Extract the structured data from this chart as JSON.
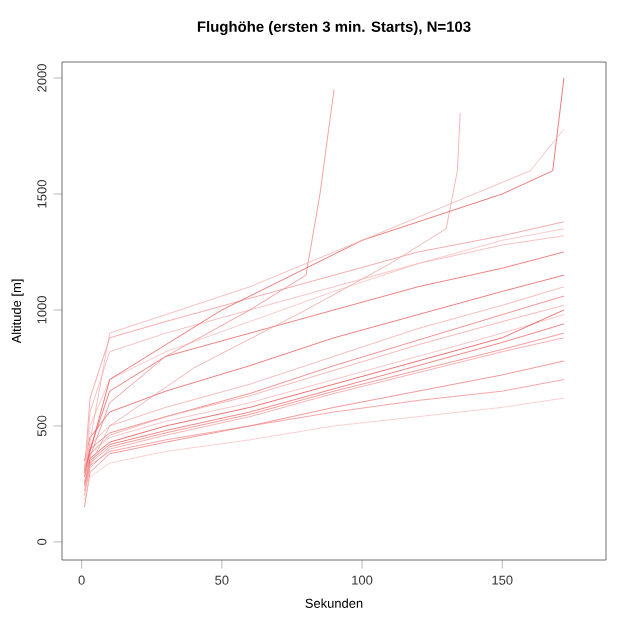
{
  "chart_data": {
    "type": "line",
    "title": "Flughöhe (ersten 3 min. Starts), N=103",
    "xlabel": "Sekunden",
    "ylabel": "Altitude [m]",
    "xlim": [
      -7,
      187
    ],
    "ylim": [
      -78,
      2069
    ],
    "xticks": [
      0,
      50,
      100,
      150
    ],
    "yticks": [
      0,
      500,
      1000,
      1500,
      2000
    ],
    "grid": false,
    "marker": "none",
    "line_style": "solid",
    "x": [
      1,
      3,
      10,
      30,
      60,
      90,
      120,
      150,
      172
    ],
    "series": [
      {
        "color": "#f08080",
        "values": [
          150,
          300,
          380,
          430,
          500,
          580,
          650,
          720,
          780
        ]
      },
      {
        "color": "#f4a0a0",
        "values": [
          200,
          320,
          400,
          460,
          540,
          640,
          730,
          820,
          880
        ]
      },
      {
        "color": "#ec6a6a",
        "values": [
          250,
          350,
          420,
          480,
          560,
          660,
          760,
          860,
          940
        ]
      },
      {
        "color": "#f8b8b8",
        "values": [
          300,
          380,
          450,
          520,
          600,
          700,
          800,
          900,
          980
        ]
      },
      {
        "color": "#e85050",
        "values": [
          280,
          360,
          430,
          500,
          580,
          680,
          780,
          880,
          1000
        ]
      },
      {
        "color": "#f49090",
        "values": [
          220,
          330,
          390,
          440,
          500,
          560,
          610,
          650,
          700
        ]
      },
      {
        "color": "#fac4c4",
        "values": [
          180,
          280,
          340,
          390,
          440,
          500,
          540,
          580,
          620
        ]
      },
      {
        "color": "#ee7878",
        "values": [
          300,
          400,
          470,
          540,
          640,
          760,
          870,
          980,
          1060
        ]
      },
      {
        "color": "#f6acac",
        "values": [
          320,
          420,
          500,
          580,
          680,
          800,
          920,
          1020,
          1100
        ]
      },
      {
        "color": "#e96060",
        "values": [
          350,
          450,
          560,
          650,
          760,
          880,
          980,
          1080,
          1150
        ]
      },
      {
        "color": "#f29898",
        "values": [
          300,
          620,
          880,
          950,
          1050,
          1150,
          1250,
          1320,
          1380
        ]
      },
      {
        "color": "#f7b2b2",
        "values": [
          280,
          560,
          820,
          900,
          1000,
          1100,
          1200,
          1280,
          1320
        ]
      },
      {
        "color": "#eb6565",
        "values": [
          300,
          400,
          650,
          800,
          900,
          1000,
          1100,
          1180,
          1250
        ]
      },
      {
        "color": "#f5a6a6",
        "values": [
          260,
          380,
          460,
          540,
          630,
          740,
          850,
          950,
          1020
        ]
      },
      {
        "color": "#ef8484",
        "values": [
          240,
          340,
          410,
          470,
          550,
          650,
          740,
          830,
          900
        ]
      },
      {
        "color": "#f9bebe",
        "values": [
          300,
          500,
          700,
          820,
          950,
          1080,
          1200,
          1300,
          1350
        ]
      },
      {
        "color": "#f08c8c",
        "x": [
          1,
          10,
          30,
          60,
          80,
          85,
          90
        ],
        "values": [
          300,
          600,
          800,
          1000,
          1150,
          1500,
          1950
        ]
      },
      {
        "color": "#f3a4a4",
        "x": [
          1,
          10,
          40,
          80,
          110,
          130,
          134,
          135
        ],
        "values": [
          280,
          500,
          750,
          1000,
          1200,
          1350,
          1600,
          1850
        ]
      },
      {
        "color": "#ea5a5a",
        "x": [
          1,
          10,
          50,
          100,
          150,
          168,
          170,
          172
        ],
        "values": [
          300,
          700,
          1000,
          1300,
          1500,
          1600,
          1800,
          2000
        ]
      },
      {
        "color": "#f6b0b0",
        "x": [
          1,
          10,
          60,
          120,
          160,
          172
        ],
        "values": [
          300,
          900,
          1100,
          1400,
          1600,
          1780
        ]
      }
    ]
  }
}
